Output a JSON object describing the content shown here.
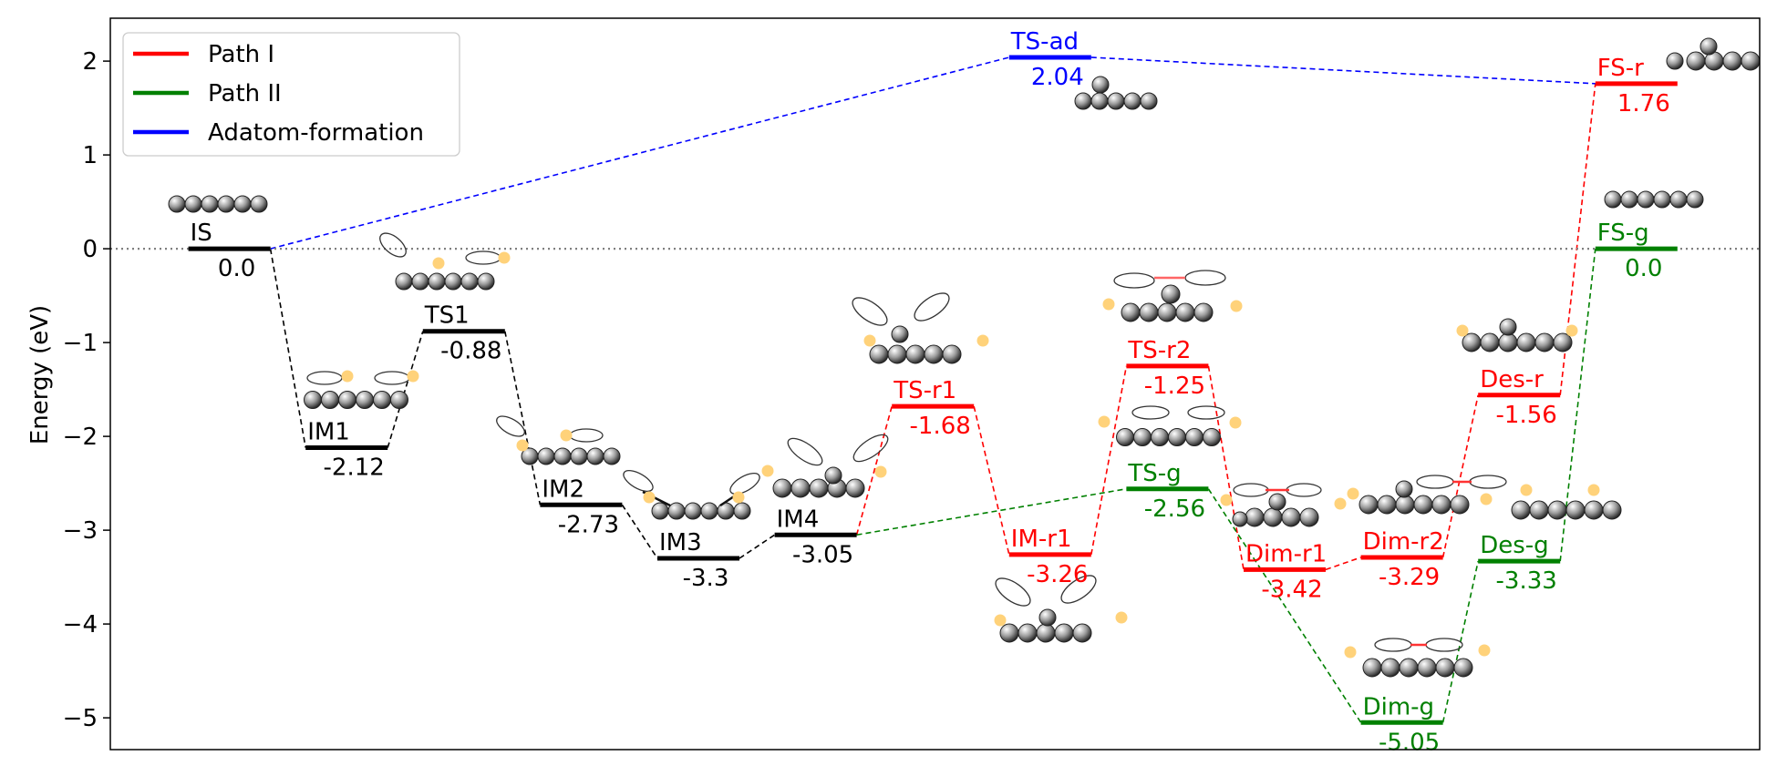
{
  "chart_data": {
    "type": "line",
    "ylabel": "Energy (eV)",
    "xlabel": "",
    "ylim": [
      -5.4,
      2.4
    ],
    "yticks": [
      "2",
      "1",
      "0",
      "−1",
      "−2",
      "−3",
      "−4",
      "−5"
    ],
    "ytick_values": [
      2,
      1,
      0,
      -1,
      -2,
      -3,
      -4,
      -5
    ],
    "reference_line": 0,
    "grid": false,
    "legend_position": "top-left",
    "legend": [
      {
        "label": "Path I",
        "color": "#ff0000"
      },
      {
        "label": "Path II",
        "color": "#008000"
      },
      {
        "label": "Adatom-formation",
        "color": "#0000ff"
      }
    ],
    "states": [
      {
        "id": "IS",
        "name": "IS",
        "value": "0.0",
        "energy": 0.0,
        "x": 1,
        "color": "#000000"
      },
      {
        "id": "IM1",
        "name": "IM1",
        "value": "-2.12",
        "energy": -2.12,
        "x": 2,
        "color": "#000000"
      },
      {
        "id": "TS1",
        "name": "TS1",
        "value": "-0.88",
        "energy": -0.88,
        "x": 3,
        "color": "#000000"
      },
      {
        "id": "IM2",
        "name": "IM2",
        "value": "-2.73",
        "energy": -2.73,
        "x": 4,
        "color": "#000000"
      },
      {
        "id": "IM3",
        "name": "IM3",
        "value": "-3.3",
        "energy": -3.3,
        "x": 5,
        "color": "#000000"
      },
      {
        "id": "IM4",
        "name": "IM4",
        "value": "-3.05",
        "energy": -3.05,
        "x": 6,
        "color": "#000000"
      },
      {
        "id": "TSr1",
        "name": "TS-r1",
        "value": "-1.68",
        "energy": -1.68,
        "x": 7,
        "color": "#ff0000"
      },
      {
        "id": "TSad",
        "name": "TS-ad",
        "value": "2.04",
        "energy": 2.04,
        "x": 8,
        "color": "#0000ff"
      },
      {
        "id": "IMr1",
        "name": "IM-r1",
        "value": "-3.26",
        "energy": -3.26,
        "x": 8,
        "color": "#ff0000"
      },
      {
        "id": "TSr2",
        "name": "TS-r2",
        "value": "-1.25",
        "energy": -1.25,
        "x": 9,
        "color": "#ff0000"
      },
      {
        "id": "TSg",
        "name": "TS-g",
        "value": "-2.56",
        "energy": -2.56,
        "x": 9,
        "color": "#008000"
      },
      {
        "id": "Dimr1",
        "name": "Dim-r1",
        "value": "-3.42",
        "energy": -3.42,
        "x": 10,
        "color": "#ff0000"
      },
      {
        "id": "Dimr2",
        "name": "Dim-r2",
        "value": "-3.29",
        "energy": -3.29,
        "x": 11,
        "color": "#ff0000"
      },
      {
        "id": "Dimg",
        "name": "Dim-g",
        "value": "-5.05",
        "energy": -5.05,
        "x": 11,
        "color": "#008000"
      },
      {
        "id": "Desr",
        "name": "Des-r",
        "value": "-1.56",
        "energy": -1.56,
        "x": 12,
        "color": "#ff0000"
      },
      {
        "id": "Desg",
        "name": "Des-g",
        "value": "-3.33",
        "energy": -3.33,
        "x": 12,
        "color": "#008000"
      },
      {
        "id": "FSr",
        "name": "FS-r",
        "value": "1.76",
        "energy": 1.76,
        "x": 13,
        "color": "#ff0000"
      },
      {
        "id": "FSg",
        "name": "FS-g",
        "value": "0.0",
        "energy": 0.0,
        "x": 13,
        "color": "#008000"
      }
    ],
    "connections": [
      {
        "from": "IS",
        "to": "IM1",
        "color": "#000000"
      },
      {
        "from": "IM1",
        "to": "TS1",
        "color": "#000000"
      },
      {
        "from": "TS1",
        "to": "IM2",
        "color": "#000000"
      },
      {
        "from": "IM2",
        "to": "IM3",
        "color": "#000000"
      },
      {
        "from": "IM3",
        "to": "IM4",
        "color": "#000000"
      },
      {
        "from": "IM4",
        "to": "TSr1",
        "color": "#ff0000"
      },
      {
        "from": "TSr1",
        "to": "IMr1",
        "color": "#ff0000"
      },
      {
        "from": "IMr1",
        "to": "TSr2",
        "color": "#ff0000"
      },
      {
        "from": "TSr2",
        "to": "Dimr1",
        "color": "#ff0000"
      },
      {
        "from": "Dimr1",
        "to": "Dimr2",
        "color": "#ff0000"
      },
      {
        "from": "Dimr2",
        "to": "Desr",
        "color": "#ff0000"
      },
      {
        "from": "Desr",
        "to": "FSr",
        "color": "#ff0000"
      },
      {
        "from": "IM4",
        "to": "TSg",
        "color": "#008000"
      },
      {
        "from": "TSg",
        "to": "Dimg",
        "color": "#008000"
      },
      {
        "from": "Dimg",
        "to": "Desg",
        "color": "#008000"
      },
      {
        "from": "Desg",
        "to": "FSg",
        "color": "#008000"
      },
      {
        "from": "IS",
        "to": "TSad",
        "color": "#0000ff"
      },
      {
        "from": "TSad",
        "to": "FSr",
        "color": "#0000ff"
      }
    ]
  }
}
